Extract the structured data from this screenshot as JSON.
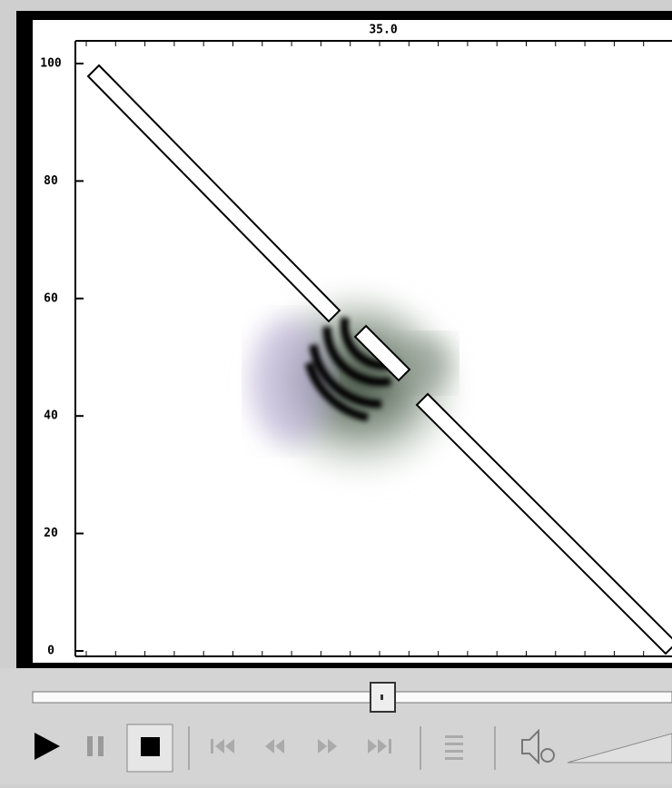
{
  "plot": {
    "title": "35.0",
    "ylim": [
      0,
      100
    ],
    "yticks": [
      0,
      20,
      40,
      60,
      80,
      100
    ]
  }
}
